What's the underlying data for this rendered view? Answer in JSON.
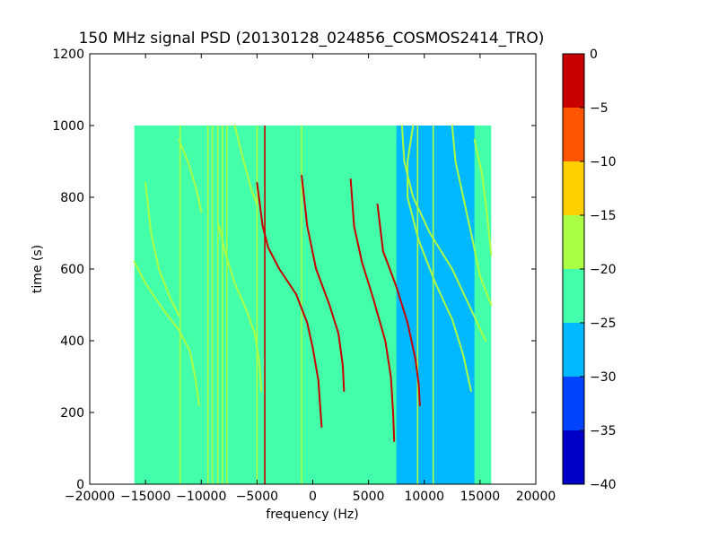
{
  "chart_data": {
    "type": "heatmap",
    "title": "150 MHz signal PSD (20130128_024856_COSMOS2414_TRO)",
    "xlabel": "frequency (Hz)",
    "ylabel": "time (s)",
    "xlim": [
      -20000,
      20000
    ],
    "ylim": [
      0,
      1200
    ],
    "x_ticks": [
      -20000,
      -15000,
      -10000,
      -5000,
      0,
      5000,
      10000,
      15000,
      20000
    ],
    "x_tick_labels": [
      "−20000",
      "−15000",
      "−10000",
      "−5000",
      "0",
      "5000",
      "10000",
      "15000",
      "20000"
    ],
    "y_ticks": [
      0,
      200,
      400,
      600,
      800,
      1000,
      1200
    ],
    "y_tick_labels": [
      "0",
      "200",
      "400",
      "600",
      "800",
      "1000",
      "1200"
    ],
    "data_extent": {
      "x": [
        -16000,
        16000
      ],
      "y": [
        0,
        1000
      ]
    },
    "background_level": -22.5,
    "noise_band": {
      "x": [
        7500,
        14500
      ],
      "level": -27.5
    },
    "vertical_lines": [
      {
        "x": -11900,
        "level": -17.5
      },
      {
        "x": -9400,
        "level": -17.5
      },
      {
        "x": -9000,
        "level": -17.5
      },
      {
        "x": -8500,
        "level": -17.5
      },
      {
        "x": -8100,
        "level": -17.5
      },
      {
        "x": -7700,
        "level": -17.5
      },
      {
        "x": -5000,
        "level": -17.5
      },
      {
        "x": -4300,
        "level": -5
      },
      {
        "x": -1000,
        "level": -17.5
      },
      {
        "x": 9400,
        "level": -17.5
      },
      {
        "x": 10800,
        "level": -17.5
      }
    ],
    "traces": [
      {
        "level": -17.5,
        "points": [
          [
            -16000,
            620
          ],
          [
            -15000,
            560
          ],
          [
            -13500,
            490
          ],
          [
            -12000,
            430
          ],
          [
            -11000,
            370
          ],
          [
            -10500,
            290
          ],
          [
            -10200,
            220
          ]
        ]
      },
      {
        "level": -17.5,
        "points": [
          [
            -12000,
            960
          ],
          [
            -11200,
            900
          ],
          [
            -10500,
            830
          ],
          [
            -10000,
            760
          ]
        ]
      },
      {
        "level": -17.5,
        "points": [
          [
            -15000,
            840
          ],
          [
            -14500,
            700
          ],
          [
            -13800,
            600
          ],
          [
            -12800,
            520
          ],
          [
            -12000,
            470
          ]
        ]
      },
      {
        "level": -17.5,
        "points": [
          [
            -8400,
            720
          ],
          [
            -7800,
            640
          ],
          [
            -7000,
            560
          ],
          [
            -6000,
            490
          ],
          [
            -5200,
            420
          ],
          [
            -4800,
            340
          ],
          [
            -4600,
            260
          ]
        ]
      },
      {
        "level": -17.5,
        "points": [
          [
            -7000,
            1000
          ],
          [
            -6200,
            900
          ],
          [
            -5500,
            820
          ],
          [
            -5000,
            780
          ]
        ]
      },
      {
        "level": -5,
        "points": [
          [
            -5000,
            840
          ],
          [
            -4500,
            720
          ],
          [
            -4000,
            660
          ],
          [
            -3000,
            600
          ],
          [
            -1500,
            530
          ],
          [
            -500,
            450
          ],
          [
            0,
            380
          ],
          [
            500,
            290
          ],
          [
            700,
            200
          ],
          [
            800,
            160
          ]
        ]
      },
      {
        "level": -5,
        "points": [
          [
            -1000,
            860
          ],
          [
            -500,
            720
          ],
          [
            300,
            600
          ],
          [
            1500,
            500
          ],
          [
            2300,
            420
          ],
          [
            2700,
            330
          ],
          [
            2800,
            260
          ]
        ]
      },
      {
        "level": -5,
        "points": [
          [
            3400,
            850
          ],
          [
            3700,
            720
          ],
          [
            4400,
            620
          ],
          [
            5400,
            520
          ],
          [
            6500,
            400
          ],
          [
            7000,
            300
          ],
          [
            7200,
            200
          ],
          [
            7300,
            120
          ]
        ]
      },
      {
        "level": -5,
        "points": [
          [
            5800,
            780
          ],
          [
            6300,
            650
          ],
          [
            7500,
            550
          ],
          [
            8500,
            450
          ],
          [
            9200,
            350
          ],
          [
            9500,
            280
          ],
          [
            9600,
            220
          ]
        ]
      },
      {
        "level": -17.5,
        "points": [
          [
            9000,
            1000
          ],
          [
            8500,
            900
          ],
          [
            8500,
            800
          ],
          [
            9500,
            680
          ],
          [
            11000,
            560
          ],
          [
            12500,
            460
          ],
          [
            13500,
            360
          ],
          [
            14200,
            260
          ]
        ]
      },
      {
        "level": -17.5,
        "points": [
          [
            12500,
            1000
          ],
          [
            12800,
            900
          ],
          [
            13500,
            800
          ],
          [
            14200,
            700
          ],
          [
            15000,
            580
          ],
          [
            16000,
            500
          ]
        ]
      },
      {
        "level": -17.5,
        "points": [
          [
            14500,
            960
          ],
          [
            15200,
            860
          ],
          [
            15600,
            760
          ],
          [
            16000,
            640
          ]
        ]
      },
      {
        "level": -17.5,
        "points": [
          [
            8000,
            1000
          ],
          [
            8200,
            900
          ],
          [
            9000,
            800
          ],
          [
            10500,
            700
          ],
          [
            12500,
            600
          ],
          [
            14000,
            500
          ],
          [
            15500,
            400
          ]
        ]
      }
    ],
    "colorbar": {
      "min": -40,
      "max": 0,
      "ticks": [
        0,
        -5,
        -10,
        -15,
        -20,
        -25,
        -30,
        -35,
        -40
      ],
      "tick_labels": [
        "0",
        "−5",
        "−10",
        "−15",
        "−20",
        "−25",
        "−30",
        "−35",
        "−40"
      ],
      "colors": [
        "#0000c8",
        "#0044ff",
        "#00b8ff",
        "#44ffaa",
        "#aaff44",
        "#ffd000",
        "#ff5500",
        "#c80000"
      ]
    },
    "grid": false
  }
}
